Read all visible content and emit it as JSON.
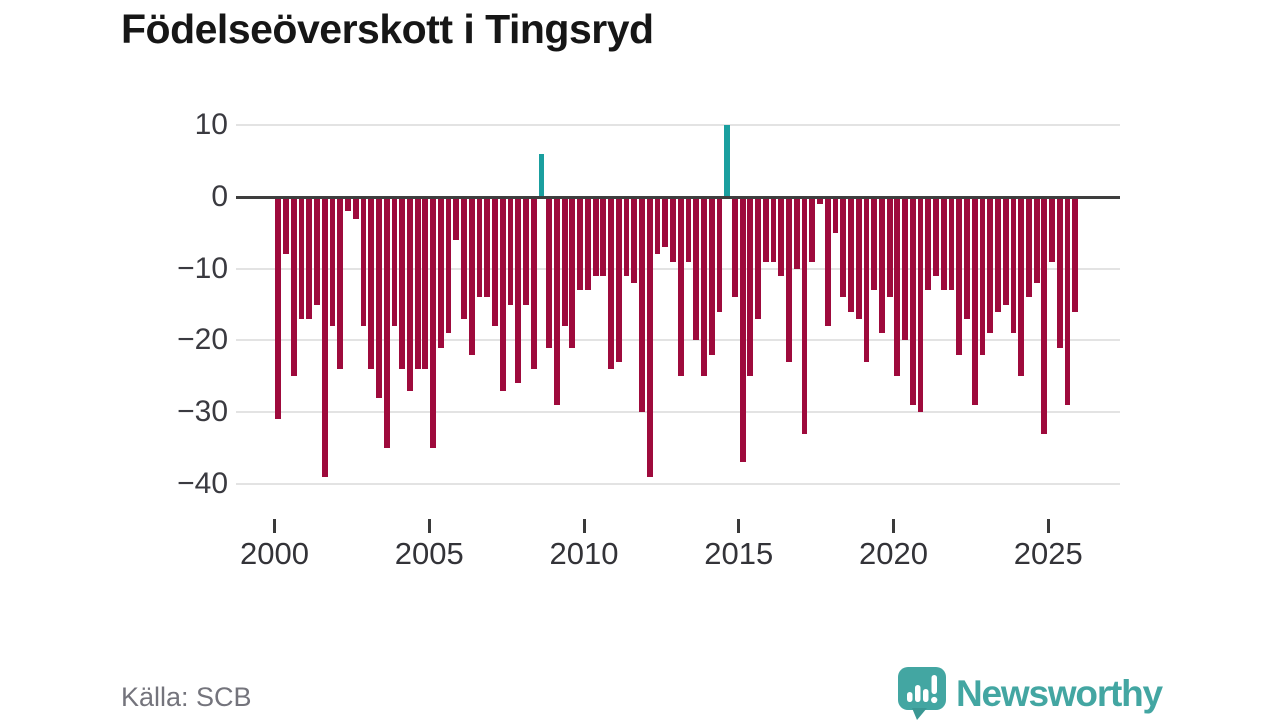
{
  "title": "Födelseöverskott i Tingsryd",
  "source": "Källa: SCB",
  "brand": "Newsworthy",
  "chart_data": {
    "type": "bar",
    "title": "Födelseöverskott i Tingsryd",
    "frequency": "quarterly",
    "start_period": "2000Q1",
    "end_period": "2025Q4",
    "values": [
      -31,
      -8,
      -25,
      -17,
      -17,
      -15,
      -39,
      -18,
      -24,
      -2,
      -3,
      -18,
      -24,
      -28,
      -35,
      -18,
      -24,
      -27,
      -24,
      -24,
      -35,
      -21,
      -19,
      -6,
      -17,
      -22,
      -14,
      -14,
      -18,
      -27,
      -15,
      -26,
      -15,
      -24,
      6,
      -21,
      -29,
      -18,
      -21,
      -13,
      -13,
      -11,
      -11,
      -24,
      -23,
      -11,
      -12,
      -30,
      -39,
      -8,
      -7,
      -9,
      -25,
      -9,
      -20,
      -25,
      -22,
      -16,
      10,
      -14,
      -37,
      -25,
      -17,
      -9,
      -9,
      -11,
      -23,
      -10,
      -33,
      -9,
      -1,
      -18,
      -5,
      -14,
      -16,
      -17,
      -23,
      -13,
      -19,
      -14,
      -25,
      -20,
      -29,
      -30,
      -13,
      -11,
      -13,
      -13,
      -22,
      -17,
      -29,
      -22,
      -19,
      -16,
      -15,
      -19,
      -25,
      -14,
      -12,
      -33,
      -9,
      -21,
      -29,
      -16
    ],
    "x_ticks": [
      2000,
      2005,
      2010,
      2015,
      2020,
      2025
    ],
    "y_ticks": [
      10,
      0,
      -10,
      -20,
      -30,
      -40
    ],
    "ylim": [
      -42,
      12
    ],
    "grid": true,
    "legend": "none",
    "colors": {
      "negative_bar": "#9e0a3c",
      "positive_bar": "#1a9f9f",
      "gridline": "#e3e3e3",
      "zero_line": "#3e3e3e",
      "axis_text": "#3a3a40",
      "brand_teal": "#43a6a2"
    }
  }
}
